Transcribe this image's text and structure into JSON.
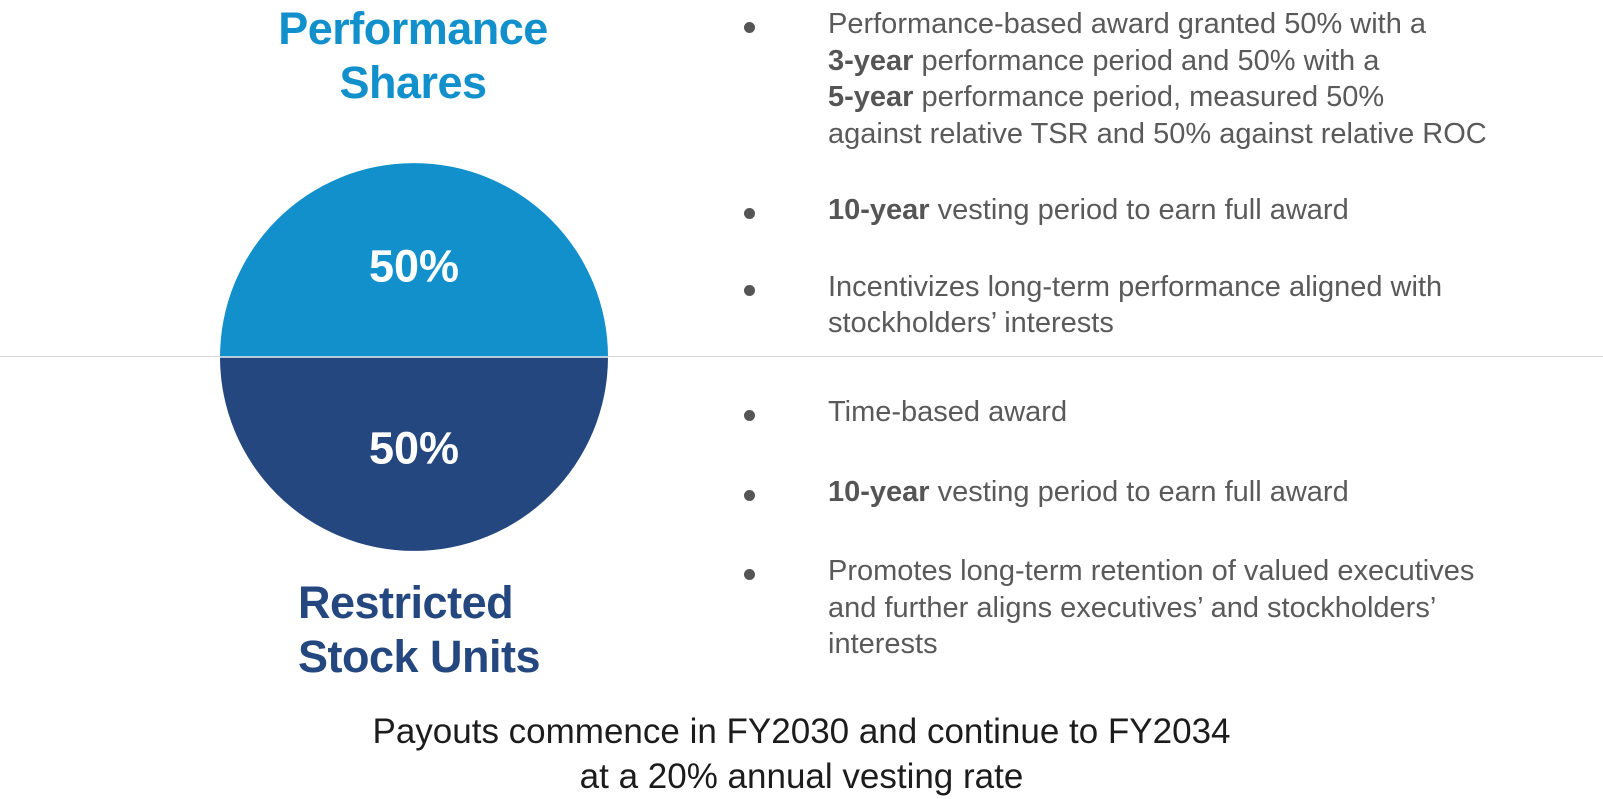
{
  "colors": {
    "performance": "#1190cb",
    "restricted": "#23477e",
    "bullet_text": "#5a5a5a",
    "footer_text": "#1c1c1c"
  },
  "chart_data": {
    "type": "pie",
    "title": "",
    "slices": [
      {
        "name": "Performance Shares",
        "value": 50,
        "label": "50%",
        "color": "#1190cb"
      },
      {
        "name": "Restricted Stock Units",
        "value": 50,
        "label": "50%",
        "color": "#23477e"
      }
    ],
    "start_angle": "left-horizontal, top half first",
    "legend": "none"
  },
  "performance": {
    "title_line1": "Performance",
    "title_line2": "Shares",
    "bullets": [
      {
        "lines": [
          [
            {
              "t": "Performance-based award granted 50% with a",
              "b": false
            }
          ],
          [
            {
              "t": "3-year",
              "b": true
            },
            {
              "t": " performance period and 50% with a",
              "b": false
            }
          ],
          [
            {
              "t": "5-year",
              "b": true
            },
            {
              "t": " performance period, measured 50%",
              "b": false
            }
          ],
          [
            {
              "t": "against relative TSR and 50% against relative ROC",
              "b": false
            }
          ]
        ]
      },
      {
        "lines": [
          [
            {
              "t": "10-year",
              "b": true
            },
            {
              "t": " vesting period to earn full award",
              "b": false
            }
          ]
        ]
      },
      {
        "lines": [
          [
            {
              "t": "Incentivizes long-term performance aligned with",
              "b": false
            }
          ],
          [
            {
              "t": "stockholders’ interests",
              "b": false
            }
          ]
        ]
      }
    ]
  },
  "restricted": {
    "title_line1": "Restricted",
    "title_line2": "Stock Units",
    "bullets": [
      {
        "lines": [
          [
            {
              "t": "Time-based award",
              "b": false
            }
          ]
        ]
      },
      {
        "lines": [
          [
            {
              "t": "10-year",
              "b": true
            },
            {
              "t": " vesting period to earn full award",
              "b": false
            }
          ]
        ]
      },
      {
        "lines": [
          [
            {
              "t": "Promotes long-term retention of valued executives",
              "b": false
            }
          ],
          [
            {
              "t": "and further aligns executives’ and stockholders’",
              "b": false
            }
          ],
          [
            {
              "t": "interests",
              "b": false
            }
          ]
        ]
      }
    ]
  },
  "footer": {
    "line1": "Payouts commence in FY2030 and continue to FY2034",
    "line2": "at a 20% annual vesting rate"
  }
}
